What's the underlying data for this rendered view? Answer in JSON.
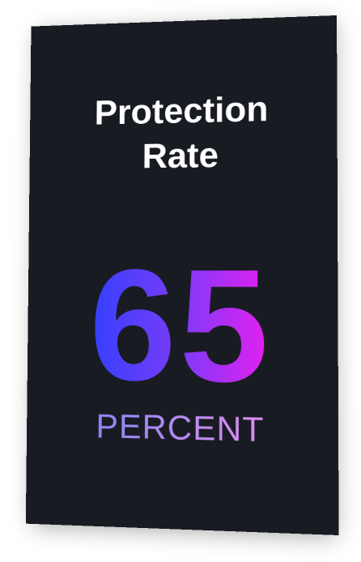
{
  "card": {
    "title": "Protection Rate",
    "value": "65",
    "unit": "PERCENT"
  },
  "colors": {
    "card_background": "#181b22",
    "title_text": "#ffffff",
    "value_gradient_start": "#3340ff",
    "value_gradient_end": "#e81ff0",
    "unit_gradient_start": "#8a86f5",
    "unit_gradient_end": "#e08cf0"
  }
}
